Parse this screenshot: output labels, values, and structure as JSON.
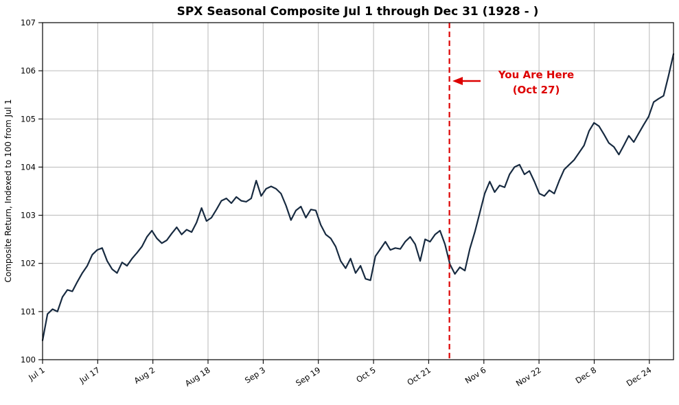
{
  "title": "SPX Seasonal Composite Jul 1 through Dec 31 (1928 - )",
  "annotation": {
    "line1": "You Are Here",
    "line2": "(Oct 27)"
  },
  "colors": {
    "line": "#172a40",
    "marker": "#dd0000",
    "annotation_text": "#dd0000",
    "grid": "#b0b0b0",
    "spine": "#000000"
  },
  "chart_data": {
    "type": "line",
    "title": "SPX Seasonal Composite Jul 1 through Dec 31 (1928 - )",
    "xlabel": "",
    "ylabel": "Composite Return, Indexed to 100 from Jul 1",
    "ylim": [
      100,
      107
    ],
    "x_range": [
      0,
      183
    ],
    "grid": true,
    "yticks": [
      100,
      101,
      102,
      103,
      104,
      105,
      106,
      107
    ],
    "xticks": [
      {
        "day": 0,
        "label": "Jul 1"
      },
      {
        "day": 16,
        "label": "Jul 17"
      },
      {
        "day": 32,
        "label": "Aug 2"
      },
      {
        "day": 48,
        "label": "Aug 18"
      },
      {
        "day": 64,
        "label": "Sep 3"
      },
      {
        "day": 80,
        "label": "Sep 19"
      },
      {
        "day": 96,
        "label": "Oct 5"
      },
      {
        "day": 112,
        "label": "Oct 21"
      },
      {
        "day": 128,
        "label": "Nov 6"
      },
      {
        "day": 144,
        "label": "Nov 22"
      },
      {
        "day": 160,
        "label": "Dec 8"
      },
      {
        "day": 176,
        "label": "Dec 24"
      }
    ],
    "vline": {
      "day": 118,
      "date_label": "Oct 27",
      "style": "dashed"
    },
    "series": [
      {
        "name": "SPX Seasonal Composite Return (indexed to 100 at Jul 1)",
        "x_spacing": "even across x_range",
        "values": [
          100.4,
          100.95,
          101.05,
          101.0,
          101.3,
          101.45,
          101.42,
          101.62,
          101.8,
          101.95,
          102.18,
          102.28,
          102.32,
          102.05,
          101.88,
          101.8,
          102.02,
          101.95,
          102.1,
          102.22,
          102.35,
          102.55,
          102.68,
          102.52,
          102.42,
          102.48,
          102.62,
          102.75,
          102.6,
          102.7,
          102.65,
          102.85,
          103.15,
          102.88,
          102.95,
          103.12,
          103.3,
          103.35,
          103.25,
          103.38,
          103.3,
          103.28,
          103.35,
          103.72,
          103.4,
          103.55,
          103.6,
          103.55,
          103.45,
          103.2,
          102.9,
          103.1,
          103.18,
          102.95,
          103.12,
          103.1,
          102.8,
          102.6,
          102.52,
          102.35,
          102.05,
          101.9,
          102.1,
          101.8,
          101.95,
          101.68,
          101.65,
          102.15,
          102.3,
          102.45,
          102.28,
          102.32,
          102.3,
          102.45,
          102.55,
          102.4,
          102.05,
          102.5,
          102.45,
          102.6,
          102.68,
          102.4,
          101.98,
          101.78,
          101.92,
          101.85,
          102.3,
          102.65,
          103.05,
          103.45,
          103.7,
          103.48,
          103.62,
          103.58,
          103.85,
          104.0,
          104.05,
          103.85,
          103.92,
          103.7,
          103.45,
          103.4,
          103.52,
          103.45,
          103.72,
          103.95,
          104.05,
          104.15,
          104.3,
          104.45,
          104.75,
          104.92,
          104.85,
          104.68,
          104.5,
          104.42,
          104.26,
          104.45,
          104.65,
          104.52,
          104.7,
          104.88,
          105.05,
          105.35,
          105.42,
          105.48,
          105.9,
          106.35
        ]
      }
    ]
  }
}
